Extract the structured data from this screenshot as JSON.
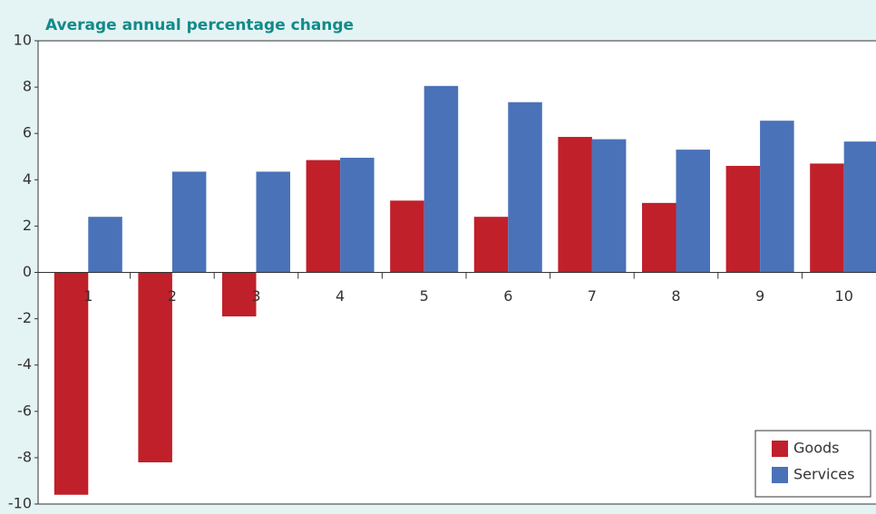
{
  "chart_data": {
    "type": "bar",
    "title": "Average annual percentage change",
    "categories": [
      "1",
      "2",
      "3",
      "4",
      "5",
      "6",
      "7",
      "8",
      "9",
      "10"
    ],
    "series": [
      {
        "name": "Goods",
        "color": "#c0202a",
        "values": [
          -9.6,
          -8.2,
          -1.9,
          4.85,
          3.1,
          2.4,
          5.85,
          3.0,
          4.6,
          4.7
        ]
      },
      {
        "name": "Services",
        "color": "#4a72b8",
        "values": [
          2.4,
          4.35,
          4.35,
          4.95,
          8.05,
          7.35,
          5.75,
          5.3,
          6.55,
          5.65
        ]
      }
    ],
    "ylim": [
      -10,
      10
    ],
    "yticks": [
      -10,
      -8,
      -6,
      -4,
      -2,
      0,
      2,
      4,
      6,
      8,
      10
    ],
    "legend": "lower right"
  }
}
